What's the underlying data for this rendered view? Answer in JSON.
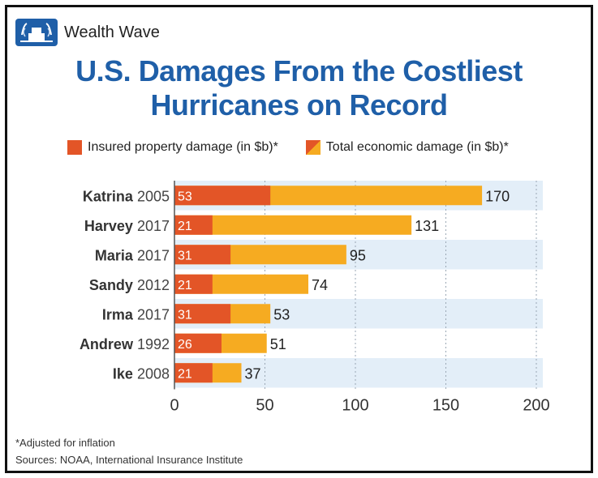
{
  "brand": {
    "name": "Wealth Wave",
    "logo": "wealth-wave-logo"
  },
  "title": {
    "line1": "U.S. Damages From the Costliest",
    "line2": "Hurricanes on Record"
  },
  "legend": {
    "insured": "Insured property damage (in $b)*",
    "total": "Total economic damage (in $b)*"
  },
  "colors": {
    "insured": "#e35527",
    "total": "#f6ab21",
    "title": "#1f5fa8",
    "row_band": "#e3eef8"
  },
  "chart_data": {
    "type": "bar",
    "orientation": "horizontal",
    "stacked": "overlay",
    "categories": [
      {
        "name": "Katrina",
        "year": "2005"
      },
      {
        "name": "Harvey",
        "year": "2017"
      },
      {
        "name": "Maria",
        "year": "2017"
      },
      {
        "name": "Sandy",
        "year": "2012"
      },
      {
        "name": "Irma",
        "year": "2017"
      },
      {
        "name": "Andrew",
        "year": "1992"
      },
      {
        "name": "Ike",
        "year": "2008"
      }
    ],
    "series": [
      {
        "name": "Insured property damage (in $b)*",
        "values": [
          53,
          21,
          31,
          21,
          31,
          26,
          21
        ]
      },
      {
        "name": "Total economic damage (in $b)*",
        "values": [
          170,
          131,
          95,
          74,
          53,
          51,
          37
        ]
      }
    ],
    "xlim": [
      0,
      200
    ],
    "xticks": [
      0,
      50,
      100,
      150,
      200
    ],
    "legend_position": "top",
    "grid": "vertical-dotted"
  },
  "footnotes": {
    "note": "*Adjusted for inflation",
    "sources": "Sources: NOAA, International Insurance Institute"
  }
}
